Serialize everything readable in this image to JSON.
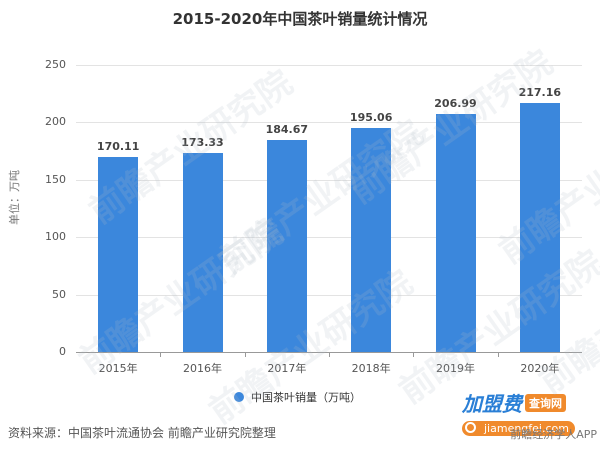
{
  "title": "2015-2020年中国茶叶销量统计情况",
  "y_axis_label": "单位：万吨",
  "legend_label": "中国茶叶销量（万吨）",
  "source": "资料来源：中国茶叶流通协会 前瞻产业研究院整理",
  "watermark": "前瞻产业研究院",
  "logo": {
    "brand": "加盟费",
    "tag": "查询网",
    "url": "jiamengfei.com",
    "app": "前瞻经济学人APP"
  },
  "colors": {
    "bar": "#3b87dc",
    "grid": "#e3e3e3"
  },
  "chart_data": {
    "type": "bar",
    "title": "2015-2020年中国茶叶销量统计情况",
    "xlabel": "",
    "ylabel": "单位：万吨",
    "categories": [
      "2015年",
      "2016年",
      "2017年",
      "2018年",
      "2019年",
      "2020年"
    ],
    "series": [
      {
        "name": "中国茶叶销量（万吨）",
        "values": [
          170.11,
          173.33,
          184.67,
          195.06,
          206.99,
          217.16
        ]
      }
    ],
    "ylim": [
      0,
      250
    ],
    "yticks": [
      0,
      50,
      100,
      150,
      200,
      250
    ],
    "grid": true,
    "legend_position": "bottom",
    "data_labels": true
  }
}
